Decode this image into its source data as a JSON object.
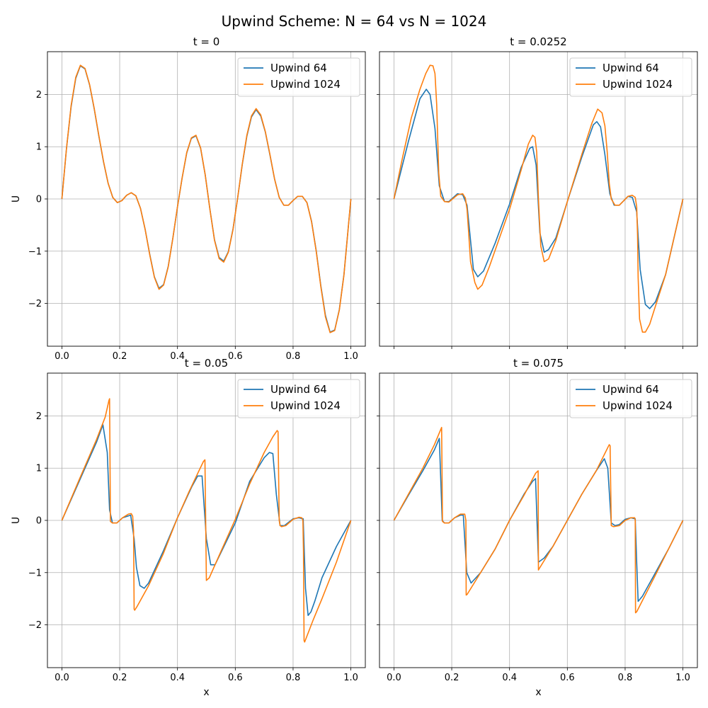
{
  "figure": {
    "suptitle": "Upwind Scheme: N = 64 vs N = 1024",
    "colors": {
      "upwind_64": "#1f77b4",
      "upwind_1024": "#ff7f0e",
      "grid": "#b0b0b0"
    }
  },
  "chart_data": [
    {
      "type": "line",
      "title": "t = 0",
      "xlabel": "",
      "ylabel": "U",
      "xlim": [
        -0.05,
        1.05
      ],
      "ylim": [
        -2.82,
        2.82
      ],
      "xticks": [
        "0.0",
        "0.2",
        "0.4",
        "0.6",
        "0.8",
        "1.0"
      ],
      "yticks": [
        "−2",
        "−1",
        "0",
        "1",
        "2"
      ],
      "grid": true,
      "legend": "top-right",
      "series": [
        {
          "name": "Upwind 64",
          "color": "#1f77b4",
          "x": [
            0,
            0.016,
            0.032,
            0.048,
            0.064,
            0.08,
            0.096,
            0.112,
            0.128,
            0.144,
            0.16,
            0.176,
            0.192,
            0.208,
            0.224,
            0.24,
            0.256,
            0.272,
            0.288,
            0.304,
            0.32,
            0.336,
            0.352,
            0.368,
            0.384,
            0.4,
            0.416,
            0.432,
            0.448,
            0.464,
            0.48,
            0.496,
            0.512,
            0.528,
            0.544,
            0.56,
            0.576,
            0.592,
            0.608,
            0.624,
            0.64,
            0.656,
            0.672,
            0.688,
            0.704,
            0.72,
            0.736,
            0.752,
            0.768,
            0.784,
            0.8,
            0.816,
            0.832,
            0.848,
            0.864,
            0.88,
            0.896,
            0.912,
            0.928,
            0.944,
            0.96,
            0.976,
            1.0
          ],
          "y": [
            0,
            0.97,
            1.77,
            2.31,
            2.55,
            2.49,
            2.18,
            1.72,
            1.2,
            0.71,
            0.3,
            0.03,
            -0.07,
            -0.03,
            0.07,
            0.12,
            0.06,
            -0.18,
            -0.58,
            -1.06,
            -1.49,
            -1.71,
            -1.64,
            -1.29,
            -0.75,
            -0.15,
            0.4,
            0.88,
            1.16,
            1.21,
            0.97,
            0.46,
            -0.19,
            -0.78,
            -1.12,
            -1.19,
            -1.01,
            -0.58,
            0.01,
            0.65,
            1.2,
            1.57,
            1.71,
            1.59,
            1.28,
            0.84,
            0.38,
            0.03,
            -0.12,
            -0.12,
            -0.03,
            0.05,
            0.05,
            -0.07,
            -0.43,
            -0.99,
            -1.66,
            -2.23,
            -2.55,
            -2.51,
            -2.12,
            -1.45,
            0
          ]
        },
        {
          "name": "Upwind 1024",
          "color": "#ff7f0e",
          "x": [
            0,
            0.016,
            0.032,
            0.048,
            0.064,
            0.08,
            0.096,
            0.112,
            0.128,
            0.144,
            0.16,
            0.176,
            0.192,
            0.208,
            0.224,
            0.24,
            0.256,
            0.272,
            0.288,
            0.304,
            0.32,
            0.336,
            0.352,
            0.368,
            0.384,
            0.4,
            0.416,
            0.432,
            0.448,
            0.464,
            0.48,
            0.496,
            0.512,
            0.528,
            0.544,
            0.56,
            0.576,
            0.592,
            0.608,
            0.624,
            0.64,
            0.656,
            0.672,
            0.688,
            0.704,
            0.72,
            0.736,
            0.752,
            0.768,
            0.784,
            0.8,
            0.816,
            0.832,
            0.848,
            0.864,
            0.88,
            0.896,
            0.912,
            0.928,
            0.944,
            0.96,
            0.976,
            1.0
          ],
          "y": [
            0,
            0.97,
            1.79,
            2.33,
            2.56,
            2.5,
            2.19,
            1.73,
            1.21,
            0.72,
            0.3,
            0.03,
            -0.07,
            -0.03,
            0.07,
            0.12,
            0.06,
            -0.18,
            -0.58,
            -1.07,
            -1.5,
            -1.73,
            -1.65,
            -1.3,
            -0.75,
            -0.15,
            0.4,
            0.89,
            1.17,
            1.22,
            0.98,
            0.46,
            -0.19,
            -0.79,
            -1.14,
            -1.21,
            -1.02,
            -0.59,
            0.01,
            0.66,
            1.22,
            1.59,
            1.73,
            1.61,
            1.29,
            0.85,
            0.38,
            0.03,
            -0.12,
            -0.12,
            -0.03,
            0.05,
            0.05,
            -0.07,
            -0.44,
            -1.0,
            -1.68,
            -2.26,
            -2.56,
            -2.52,
            -2.13,
            -1.46,
            0
          ]
        }
      ]
    },
    {
      "type": "line",
      "title": "t = 0.0252",
      "xlabel": "",
      "ylabel": "",
      "xlim": [
        -0.05,
        1.05
      ],
      "ylim": [
        -2.82,
        2.82
      ],
      "xticks": [],
      "yticks": [],
      "grid": true,
      "legend": "top-right",
      "series": [
        {
          "name": "Upwind 64",
          "color": "#1f77b4",
          "x": [
            0,
            0.05,
            0.09,
            0.112,
            0.125,
            0.142,
            0.157,
            0.175,
            0.19,
            0.22,
            0.238,
            0.253,
            0.275,
            0.29,
            0.31,
            0.35,
            0.4,
            0.44,
            0.47,
            0.48,
            0.492,
            0.505,
            0.52,
            0.535,
            0.56,
            0.6,
            0.65,
            0.69,
            0.702,
            0.715,
            0.73,
            0.747,
            0.762,
            0.78,
            0.81,
            0.825,
            0.84,
            0.852,
            0.87,
            0.885,
            0.905,
            0.94,
            1.0
          ],
          "y": [
            0,
            1.1,
            1.92,
            2.1,
            2.0,
            1.35,
            0.25,
            -0.05,
            -0.05,
            0.1,
            0.08,
            -0.12,
            -1.35,
            -1.49,
            -1.38,
            -0.85,
            -0.1,
            0.6,
            0.97,
            1.0,
            0.65,
            -0.65,
            -1.02,
            -0.97,
            -0.75,
            -0.05,
            0.8,
            1.42,
            1.48,
            1.38,
            0.85,
            0.1,
            -0.12,
            -0.12,
            0.05,
            0.03,
            -0.25,
            -1.35,
            -2.02,
            -2.1,
            -1.97,
            -1.45,
            0
          ]
        },
        {
          "name": "Upwind 1024",
          "color": "#ff7f0e",
          "x": [
            0,
            0.03,
            0.06,
            0.09,
            0.11,
            0.125,
            0.135,
            0.142,
            0.148,
            0.155,
            0.162,
            0.175,
            0.19,
            0.22,
            0.238,
            0.247,
            0.253,
            0.258,
            0.265,
            0.28,
            0.29,
            0.305,
            0.33,
            0.4,
            0.44,
            0.465,
            0.48,
            0.488,
            0.494,
            0.5,
            0.508,
            0.52,
            0.535,
            0.56,
            0.6,
            0.65,
            0.685,
            0.705,
            0.72,
            0.73,
            0.738,
            0.745,
            0.752,
            0.765,
            0.78,
            0.81,
            0.825,
            0.835,
            0.84,
            0.843,
            0.845,
            0.85,
            0.86,
            0.87,
            0.885,
            0.905,
            0.94,
            1.0
          ],
          "y": [
            0,
            0.8,
            1.55,
            2.1,
            2.4,
            2.56,
            2.55,
            2.4,
            1.8,
            0.5,
            0.05,
            -0.05,
            -0.06,
            0.08,
            0.1,
            0.02,
            -0.2,
            -0.6,
            -1.2,
            -1.6,
            -1.73,
            -1.65,
            -1.3,
            -0.2,
            0.55,
            1.05,
            1.22,
            1.18,
            0.9,
            0.0,
            -0.9,
            -1.2,
            -1.15,
            -0.8,
            -0.05,
            0.85,
            1.45,
            1.72,
            1.65,
            1.4,
            0.9,
            0.3,
            0.0,
            -0.12,
            -0.12,
            0.05,
            0.07,
            0.03,
            -0.15,
            -0.7,
            -1.5,
            -2.3,
            -2.55,
            -2.55,
            -2.4,
            -2.05,
            -1.45,
            0
          ]
        }
      ]
    },
    {
      "type": "line",
      "title": "t = 0.05",
      "xlabel": "x",
      "ylabel": "U",
      "xlim": [
        -0.05,
        1.05
      ],
      "ylim": [
        -2.82,
        2.82
      ],
      "xticks": [
        "0.0",
        "0.2",
        "0.4",
        "0.6",
        "0.8",
        "1.0"
      ],
      "yticks": [
        "−2",
        "−1",
        "0",
        "1",
        "2"
      ],
      "grid": true,
      "legend": "top-right",
      "series": [
        {
          "name": "Upwind 64",
          "color": "#1f77b4",
          "x": [
            0,
            0.06,
            0.12,
            0.142,
            0.157,
            0.165,
            0.175,
            0.19,
            0.21,
            0.238,
            0.25,
            0.258,
            0.27,
            0.285,
            0.3,
            0.35,
            0.4,
            0.45,
            0.47,
            0.485,
            0.5,
            0.515,
            0.53,
            0.6,
            0.65,
            0.7,
            0.718,
            0.73,
            0.742,
            0.755,
            0.77,
            0.8,
            0.82,
            0.835,
            0.843,
            0.852,
            0.862,
            0.875,
            0.9,
            0.95,
            1.0
          ],
          "y": [
            0,
            0.75,
            1.5,
            1.83,
            1.3,
            0.2,
            -0.05,
            -0.05,
            0.05,
            0.1,
            -0.35,
            -0.9,
            -1.25,
            -1.3,
            -1.2,
            -0.6,
            0.05,
            0.65,
            0.85,
            0.85,
            -0.35,
            -0.85,
            -0.85,
            -0.05,
            0.75,
            1.2,
            1.3,
            1.28,
            0.5,
            -0.1,
            -0.1,
            0.03,
            0.05,
            0.03,
            -1.3,
            -1.82,
            -1.75,
            -1.55,
            -1.1,
            -0.5,
            0
          ]
        },
        {
          "name": "Upwind 1024",
          "color": "#ff7f0e",
          "x": [
            0,
            0.06,
            0.12,
            0.15,
            0.163,
            0.165,
            0.168,
            0.175,
            0.19,
            0.21,
            0.23,
            0.24,
            0.245,
            0.248,
            0.25,
            0.252,
            0.26,
            0.3,
            0.35,
            0.4,
            0.44,
            0.47,
            0.49,
            0.495,
            0.5,
            0.51,
            0.55,
            0.6,
            0.65,
            0.7,
            0.73,
            0.745,
            0.748,
            0.752,
            0.755,
            0.76,
            0.775,
            0.8,
            0.82,
            0.83,
            0.834,
            0.836,
            0.838,
            0.84,
            0.87,
            0.9,
            0.95,
            1.0
          ],
          "y": [
            0,
            0.78,
            1.55,
            1.98,
            2.3,
            2.33,
            -0.02,
            -0.05,
            -0.05,
            0.05,
            0.12,
            0.13,
            0.08,
            -0.2,
            -1.7,
            -1.72,
            -1.65,
            -1.25,
            -0.65,
            0.05,
            0.55,
            0.9,
            1.13,
            1.16,
            -1.15,
            -1.1,
            -0.6,
            0.02,
            0.7,
            1.3,
            1.6,
            1.72,
            1.7,
            0.0,
            -0.1,
            -0.12,
            -0.1,
            0.02,
            0.06,
            0.05,
            0.0,
            -0.6,
            -2.3,
            -2.33,
            -1.9,
            -1.5,
            -0.8,
            0
          ]
        }
      ]
    },
    {
      "type": "line",
      "title": "t = 0.075",
      "xlabel": "x",
      "ylabel": "",
      "xlim": [
        -0.05,
        1.05
      ],
      "ylim": [
        -2.82,
        2.82
      ],
      "xticks": [
        "0.0",
        "0.2",
        "0.4",
        "0.6",
        "0.8",
        "1.0"
      ],
      "yticks": [],
      "grid": true,
      "legend": "top-right",
      "series": [
        {
          "name": "Upwind 64",
          "color": "#1f77b4",
          "x": [
            0,
            0.05,
            0.1,
            0.14,
            0.157,
            0.167,
            0.175,
            0.19,
            0.21,
            0.23,
            0.24,
            0.252,
            0.267,
            0.3,
            0.35,
            0.4,
            0.45,
            0.48,
            0.49,
            0.5,
            0.52,
            0.55,
            0.6,
            0.65,
            0.7,
            0.728,
            0.74,
            0.752,
            0.765,
            0.78,
            0.8,
            0.82,
            0.835,
            0.84,
            0.845,
            0.86,
            0.9,
            0.95,
            1.0
          ],
          "y": [
            0,
            0.48,
            0.95,
            1.35,
            1.57,
            0.0,
            -0.05,
            -0.05,
            0.05,
            0.1,
            0.1,
            -1.0,
            -1.2,
            -1.0,
            -0.55,
            0.0,
            0.5,
            0.75,
            0.8,
            -0.8,
            -0.72,
            -0.5,
            0.0,
            0.5,
            0.95,
            1.18,
            1.0,
            -0.05,
            -0.1,
            -0.08,
            0.02,
            0.05,
            0.03,
            -0.8,
            -1.55,
            -1.45,
            -1.05,
            -0.55,
            0
          ]
        },
        {
          "name": "Upwind 1024",
          "color": "#ff7f0e",
          "x": [
            0,
            0.05,
            0.1,
            0.14,
            0.165,
            0.168,
            0.175,
            0.19,
            0.21,
            0.23,
            0.245,
            0.249,
            0.25,
            0.253,
            0.3,
            0.35,
            0.4,
            0.45,
            0.49,
            0.499,
            0.5,
            0.502,
            0.55,
            0.6,
            0.65,
            0.7,
            0.745,
            0.748,
            0.752,
            0.76,
            0.78,
            0.8,
            0.82,
            0.833,
            0.835,
            0.836,
            0.84,
            0.9,
            0.95,
            1.0
          ],
          "y": [
            0,
            0.5,
            1.0,
            1.45,
            1.78,
            -0.02,
            -0.05,
            -0.05,
            0.05,
            0.12,
            0.12,
            0.0,
            -1.43,
            -1.42,
            -1.0,
            -0.55,
            0.0,
            0.48,
            0.9,
            0.95,
            -0.95,
            -0.93,
            -0.5,
            0.0,
            0.5,
            0.95,
            1.45,
            1.43,
            -0.1,
            -0.12,
            -0.1,
            0.0,
            0.05,
            0.05,
            0.0,
            -1.77,
            -1.75,
            -1.1,
            -0.55,
            0
          ]
        }
      ]
    }
  ]
}
